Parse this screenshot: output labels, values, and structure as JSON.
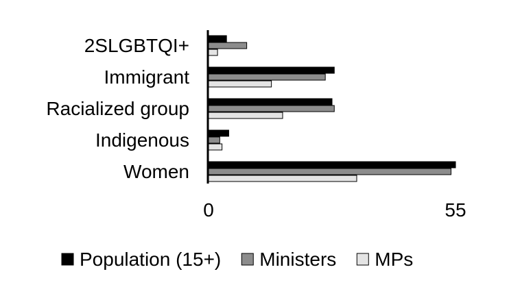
{
  "chart_data": {
    "type": "bar",
    "orientation": "horizontal",
    "categories": [
      "2SLGBTQI+",
      "Immigrant",
      "Racialized group",
      "Indigenous",
      "Women"
    ],
    "series": [
      {
        "name": "Population (15+)",
        "values": [
          4,
          28,
          27.5,
          4.5,
          55
        ],
        "color": "#000000"
      },
      {
        "name": "Ministers",
        "values": [
          8.5,
          26,
          28,
          2.5,
          54
        ],
        "color": "#8c8c8c"
      },
      {
        "name": "MPs",
        "values": [
          2,
          14,
          16.5,
          3,
          33
        ],
        "color": "#e4e4e4"
      }
    ],
    "xlim": [
      0,
      55
    ],
    "xticks": [
      "0",
      "55"
    ],
    "legend_position": "bottom",
    "grid": false
  }
}
